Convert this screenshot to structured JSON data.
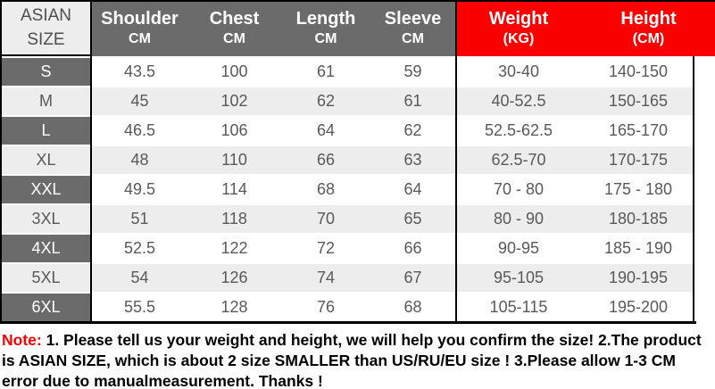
{
  "table": {
    "corner": {
      "line1": "ASIAN",
      "line2": "SIZE"
    },
    "columns": [
      {
        "label": "Shoulder",
        "unit": "CM"
      },
      {
        "label": "Chest",
        "unit": "CM"
      },
      {
        "label": "Length",
        "unit": "CM"
      },
      {
        "label": "Sleeve",
        "unit": "CM"
      }
    ],
    "red_columns": [
      {
        "label": "Weight",
        "unit": "(KG)"
      },
      {
        "label": "Height",
        "unit": "(CM)"
      }
    ],
    "rows": [
      {
        "size": "S",
        "shoulder": "43.5",
        "chest": "100",
        "length": "61",
        "sleeve": "59",
        "weight": "30-40",
        "height": "140-150"
      },
      {
        "size": "M",
        "shoulder": "45",
        "chest": "102",
        "length": "62",
        "sleeve": "61",
        "weight": "40-52.5",
        "height": "150-165"
      },
      {
        "size": "L",
        "shoulder": "46.5",
        "chest": "106",
        "length": "64",
        "sleeve": "62",
        "weight": "52.5-62.5",
        "height": "165-170"
      },
      {
        "size": "XL",
        "shoulder": "48",
        "chest": "110",
        "length": "66",
        "sleeve": "63",
        "weight": "62.5-70",
        "height": "170-175"
      },
      {
        "size": "XXL",
        "shoulder": "49.5",
        "chest": "114",
        "length": "68",
        "sleeve": "64",
        "weight": "70 - 80",
        "height": "175 - 180"
      },
      {
        "size": "3XL",
        "shoulder": "51",
        "chest": "118",
        "length": "70",
        "sleeve": "65",
        "weight": "80 - 90",
        "height": "180-185"
      },
      {
        "size": "4XL",
        "shoulder": "52.5",
        "chest": "122",
        "length": "72",
        "sleeve": "66",
        "weight": "90-95",
        "height": "185 - 190"
      },
      {
        "size": "5XL",
        "shoulder": "54",
        "chest": "126",
        "length": "74",
        "sleeve": "67",
        "weight": "95-105",
        "height": "190-195"
      },
      {
        "size": "6XL",
        "shoulder": "55.5",
        "chest": "128",
        "length": "76",
        "sleeve": "68",
        "weight": "105-115",
        "height": "195-200"
      }
    ]
  },
  "note": {
    "prefix": "Note:",
    "body": " 1. Please tell us your weight and height, we will help you confirm the size!  2.The product is ASIAN SIZE, which is about 2 size SMALLER than US/RU/EU size ! 3.Please allow 1-3 CM error due to manualmeasurement.  Thanks !"
  },
  "colors": {
    "header_gray": "#6b6b6b",
    "header_red": "#fb0000",
    "row_light": "#ededed",
    "row_dark": "#6b6b6b",
    "data_text": "#595959",
    "note_red": "#fe0000",
    "border": "#000000"
  }
}
